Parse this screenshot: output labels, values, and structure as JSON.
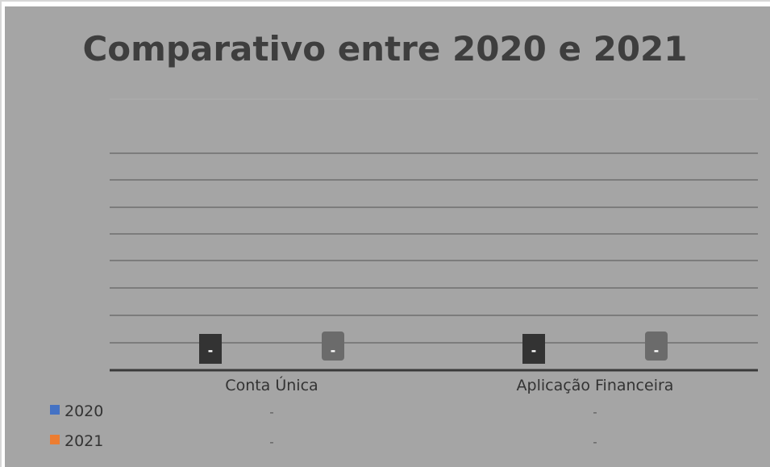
{
  "chart_data": {
    "type": "bar",
    "title": "Comparativo entre 2020 e 2021",
    "categories": [
      "Conta Única",
      "Aplicação Financeira"
    ],
    "series": [
      {
        "name": "2020",
        "values": [
          0,
          0
        ],
        "data_labels": [
          "-",
          "-"
        ],
        "table_values": [
          "-",
          "-"
        ],
        "legend_color": "#4472c4",
        "bar_color": "#333333"
      },
      {
        "name": "2021",
        "values": [
          0,
          0
        ],
        "data_labels": [
          "-",
          "-"
        ],
        "table_values": [
          "-",
          "-"
        ],
        "legend_color": "#ed7d31",
        "bar_color": "#6b6b6b"
      }
    ],
    "grid": true,
    "legend": "data-table-left",
    "colors": {
      "background": "#a5a5a5",
      "gridline": "#6e6e6e",
      "axis": "#3a3a3a",
      "title": "#3e3e3e"
    }
  }
}
